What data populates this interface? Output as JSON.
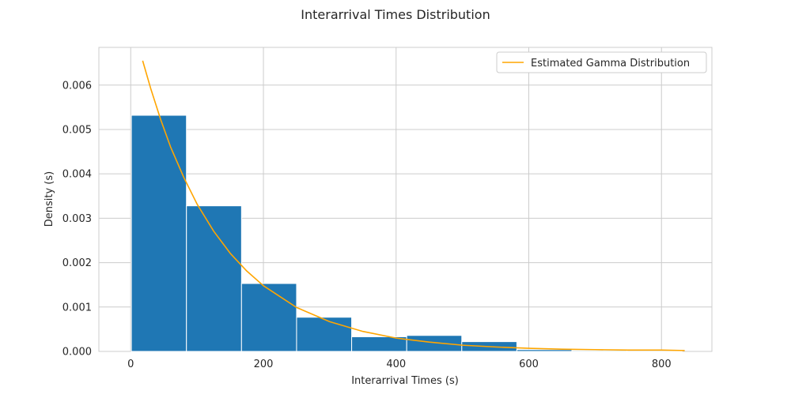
{
  "chart_data": {
    "type": "bar",
    "title": "Interarrival Times Distribution",
    "xlabel": "Interarrival Times (s)",
    "ylabel": "Density (s)",
    "xlim": [
      -48,
      876
    ],
    "ylim": [
      0,
      0.00685
    ],
    "x_ticks": [
      0,
      200,
      400,
      600,
      800
    ],
    "x_tick_labels": [
      "0",
      "200",
      "400",
      "600",
      "800"
    ],
    "y_ticks": [
      0,
      0.001,
      0.002,
      0.003,
      0.004,
      0.005,
      0.006
    ],
    "y_tick_labels": [
      "0.000",
      "0.001",
      "0.002",
      "0.003",
      "0.004",
      "0.005",
      "0.006"
    ],
    "grid": true,
    "legend_position": "top-right",
    "bar_color": "#1f77b4",
    "curve_color": "#ffa500",
    "histogram": {
      "bin_edges": [
        1,
        84,
        167,
        250,
        333,
        416,
        499,
        582,
        665,
        748,
        831
      ],
      "densities": [
        0.00532,
        0.00328,
        0.00153,
        0.00077,
        0.00033,
        0.00036,
        0.00022,
        4e-05,
        2e-05,
        2e-05
      ]
    },
    "series": [
      {
        "name": "Estimated Gamma Distribution",
        "type": "line",
        "x": [
          18,
          30,
          45,
          60,
          80,
          100,
          125,
          150,
          175,
          200,
          250,
          300,
          350,
          400,
          450,
          500,
          550,
          600,
          650,
          700,
          750,
          800,
          835
        ],
        "y": [
          0.00655,
          0.00593,
          0.00523,
          0.00461,
          0.00392,
          0.00332,
          0.00271,
          0.00221,
          0.00181,
          0.00148,
          0.00099,
          0.00067,
          0.00045,
          0.0003,
          0.00021,
          0.00014,
          0.0001,
          7e-05,
          5e-05,
          4e-05,
          3e-05,
          3e-05,
          2e-05
        ]
      }
    ]
  }
}
